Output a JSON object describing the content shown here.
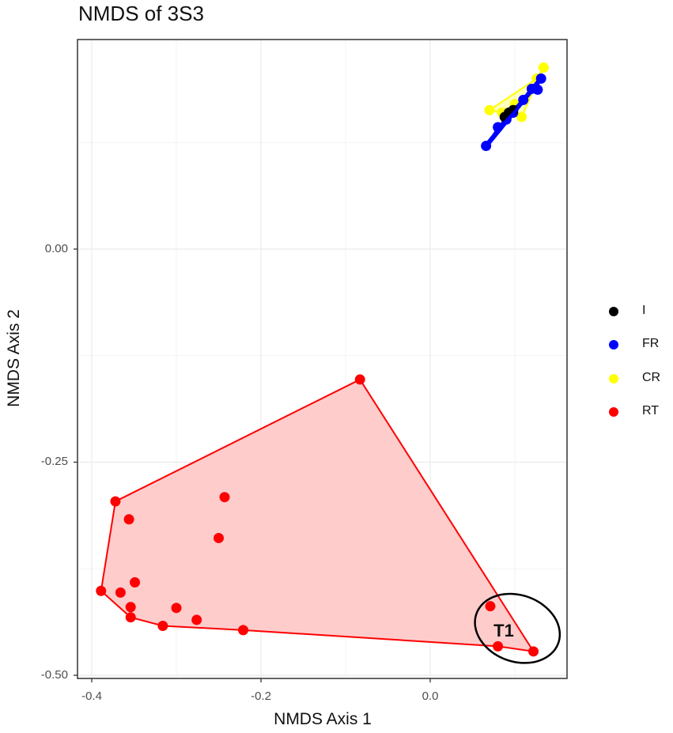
{
  "chart_data": {
    "type": "scatter",
    "title": "NMDS of 3S3",
    "xlabel": "NMDS Axis 1",
    "ylabel": "NMDS Axis 2",
    "xlim": [
      -0.417,
      0.16
    ],
    "ylim": [
      -0.502,
      0.25
    ],
    "x_ticks": [
      -0.4,
      -0.2,
      0.0
    ],
    "x_tick_labels": [
      "-0.4",
      "-0.2",
      "0.0"
    ],
    "y_ticks": [
      0.0,
      -0.25,
      -0.5
    ],
    "y_tick_labels": [
      "0.00",
      "-0.25",
      "-0.50"
    ],
    "grid": true,
    "legend_position": "right",
    "legend": [
      {
        "label": "I",
        "color": "#000000"
      },
      {
        "label": "FR",
        "color": "#0000FF"
      },
      {
        "label": "CR",
        "color": "#FFFF00"
      },
      {
        "label": "RT",
        "color": "#FF0000"
      }
    ],
    "series": [
      {
        "name": "RT",
        "color": "#FF0000",
        "hull_fill": "#FFCCCC",
        "points": [
          {
            "x": -0.083,
            "y": -0.153
          },
          {
            "x": -0.372,
            "y": -0.296
          },
          {
            "x": -0.356,
            "y": -0.317
          },
          {
            "x": -0.243,
            "y": -0.291
          },
          {
            "x": -0.25,
            "y": -0.339
          },
          {
            "x": -0.389,
            "y": -0.401
          },
          {
            "x": -0.366,
            "y": -0.403
          },
          {
            "x": -0.349,
            "y": -0.391
          },
          {
            "x": -0.354,
            "y": -0.42
          },
          {
            "x": -0.354,
            "y": -0.432
          },
          {
            "x": -0.3,
            "y": -0.421
          },
          {
            "x": -0.316,
            "y": -0.442
          },
          {
            "x": -0.276,
            "y": -0.435
          },
          {
            "x": -0.221,
            "y": -0.447
          },
          {
            "x": 0.071,
            "y": -0.419
          },
          {
            "x": 0.08,
            "y": -0.466
          },
          {
            "x": 0.122,
            "y": -0.472
          }
        ],
        "hull": [
          {
            "x": -0.083,
            "y": -0.153
          },
          {
            "x": 0.122,
            "y": -0.472
          },
          {
            "x": 0.08,
            "y": -0.466
          },
          {
            "x": -0.221,
            "y": -0.447
          },
          {
            "x": -0.316,
            "y": -0.442
          },
          {
            "x": -0.354,
            "y": -0.432
          },
          {
            "x": -0.389,
            "y": -0.401
          },
          {
            "x": -0.372,
            "y": -0.296
          }
        ]
      },
      {
        "name": "CR",
        "color": "#FFFF00",
        "points": [
          {
            "x": 0.134,
            "y": 0.213
          },
          {
            "x": 0.126,
            "y": 0.2
          },
          {
            "x": 0.07,
            "y": 0.163
          },
          {
            "x": 0.108,
            "y": 0.155
          },
          {
            "x": 0.085,
            "y": 0.16
          },
          {
            "x": 0.1,
            "y": 0.17
          }
        ],
        "hull": [
          {
            "x": 0.134,
            "y": 0.213
          },
          {
            "x": 0.108,
            "y": 0.155
          },
          {
            "x": 0.07,
            "y": 0.163
          },
          {
            "x": 0.126,
            "y": 0.2
          }
        ]
      },
      {
        "name": "FR",
        "color": "#0000FF",
        "points": [
          {
            "x": 0.066,
            "y": 0.121
          },
          {
            "x": 0.131,
            "y": 0.2
          },
          {
            "x": 0.127,
            "y": 0.187
          },
          {
            "x": 0.12,
            "y": 0.188
          },
          {
            "x": 0.098,
            "y": 0.16
          },
          {
            "x": 0.09,
            "y": 0.152
          },
          {
            "x": 0.08,
            "y": 0.143
          },
          {
            "x": 0.11,
            "y": 0.175
          }
        ],
        "hull": [
          {
            "x": 0.066,
            "y": 0.121
          },
          {
            "x": 0.131,
            "y": 0.2
          },
          {
            "x": 0.12,
            "y": 0.188
          },
          {
            "x": 0.08,
            "y": 0.143
          }
        ]
      },
      {
        "name": "I",
        "color": "#000000",
        "points": [
          {
            "x": 0.093,
            "y": 0.16
          },
          {
            "x": 0.098,
            "y": 0.163
          },
          {
            "x": 0.088,
            "y": 0.155
          }
        ]
      }
    ],
    "annotations": [
      {
        "type": "ellipse",
        "label": "T1",
        "cx": 0.103,
        "cy": -0.445,
        "rx": 0.05,
        "ry": 0.04,
        "rotation_deg": 20,
        "color": "#000000"
      }
    ]
  }
}
